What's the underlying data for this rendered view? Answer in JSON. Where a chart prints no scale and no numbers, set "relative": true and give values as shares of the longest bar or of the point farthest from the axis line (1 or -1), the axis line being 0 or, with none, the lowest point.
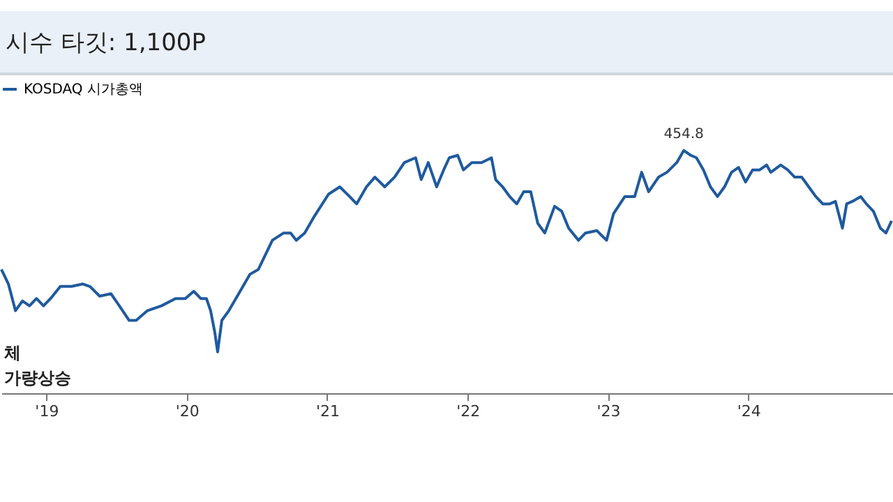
{
  "chart_data": {
    "type": "line",
    "title": "시수 타깃: 1,100P",
    "relative": true,
    "legend": "top",
    "tick_labels": "x",
    "xlim": [
      2018.68,
      2025.03
    ],
    "xticks": [
      {
        "value": 2019,
        "label": "'19"
      },
      {
        "value": 2020,
        "label": "'20"
      },
      {
        "value": 2021,
        "label": "'21"
      },
      {
        "value": 2022,
        "label": "'22"
      },
      {
        "value": 2023,
        "label": "'23"
      },
      {
        "value": 2024,
        "label": "'24"
      }
    ],
    "x": [
      2018.68,
      2018.73,
      2018.78,
      2018.83,
      2018.88,
      2018.93,
      2018.98,
      2019.03,
      2019.1,
      2019.18,
      2019.26,
      2019.31,
      2019.38,
      2019.46,
      2019.52,
      2019.59,
      2019.64,
      2019.72,
      2019.82,
      2019.92,
      2019.99,
      2020.05,
      2020.1,
      2020.14,
      2020.17,
      2020.2,
      2020.22,
      2020.25,
      2020.3,
      2020.37,
      2020.45,
      2020.51,
      2020.61,
      2020.69,
      2020.74,
      2020.78,
      2020.84,
      2020.91,
      2021.01,
      2021.09,
      2021.16,
      2021.21,
      2021.28,
      2021.34,
      2021.41,
      2021.48,
      2021.55,
      2021.63,
      2021.67,
      2021.72,
      2021.78,
      2021.83,
      2021.87,
      2021.93,
      2021.97,
      2022.03,
      2022.1,
      2022.17,
      2022.2,
      2022.25,
      2022.3,
      2022.35,
      2022.4,
      2022.45,
      2022.5,
      2022.55,
      2022.62,
      2022.67,
      2022.72,
      2022.79,
      2022.84,
      2022.92,
      2022.99,
      2023.04,
      2023.12,
      2023.19,
      2023.24,
      2023.29,
      2023.36,
      2023.42,
      2023.49,
      2023.54,
      2023.59,
      2023.63,
      2023.68,
      2023.73,
      2023.78,
      2023.83,
      2023.88,
      2023.93,
      2023.98,
      2024.03,
      2024.08,
      2024.13,
      2024.16,
      2024.23,
      2024.28,
      2024.33,
      2024.38,
      2024.43,
      2024.48,
      2024.53,
      2024.58,
      2024.62,
      2024.67,
      2024.7,
      2024.74,
      2024.8,
      2024.84,
      2024.89,
      2024.94,
      2024.98,
      2025.02
    ],
    "series": [
      {
        "name": "KOSDAQ 시가총액",
        "color": "#1f5a9e",
        "values": [
          0.51,
          0.45,
          0.34,
          0.38,
          0.36,
          0.39,
          0.36,
          0.39,
          0.44,
          0.44,
          0.45,
          0.44,
          0.4,
          0.41,
          0.36,
          0.3,
          0.3,
          0.34,
          0.36,
          0.39,
          0.39,
          0.42,
          0.39,
          0.39,
          0.34,
          0.25,
          0.17,
          0.3,
          0.34,
          0.41,
          0.49,
          0.51,
          0.63,
          0.66,
          0.66,
          0.63,
          0.66,
          0.73,
          0.82,
          0.85,
          0.81,
          0.78,
          0.85,
          0.89,
          0.85,
          0.89,
          0.95,
          0.97,
          0.88,
          0.95,
          0.85,
          0.92,
          0.97,
          0.98,
          0.92,
          0.95,
          0.95,
          0.97,
          0.88,
          0.85,
          0.81,
          0.78,
          0.83,
          0.83,
          0.7,
          0.66,
          0.77,
          0.75,
          0.68,
          0.63,
          0.66,
          0.67,
          0.63,
          0.74,
          0.81,
          0.81,
          0.91,
          0.83,
          0.89,
          0.91,
          0.95,
          1,
          0.98,
          0.97,
          0.92,
          0.85,
          0.81,
          0.85,
          0.91,
          0.93,
          0.87,
          0.92,
          0.92,
          0.94,
          0.91,
          0.94,
          0.92,
          0.89,
          0.89,
          0.85,
          0.81,
          0.78,
          0.78,
          0.79,
          0.68,
          0.78,
          0.79,
          0.81,
          0.78,
          0.75,
          0.68,
          0.66,
          0.71
        ]
      }
    ],
    "annotations": [
      {
        "text": "454.8",
        "x": 2023.54,
        "y": 1
      },
      "체",
      "가량상승"
    ]
  }
}
